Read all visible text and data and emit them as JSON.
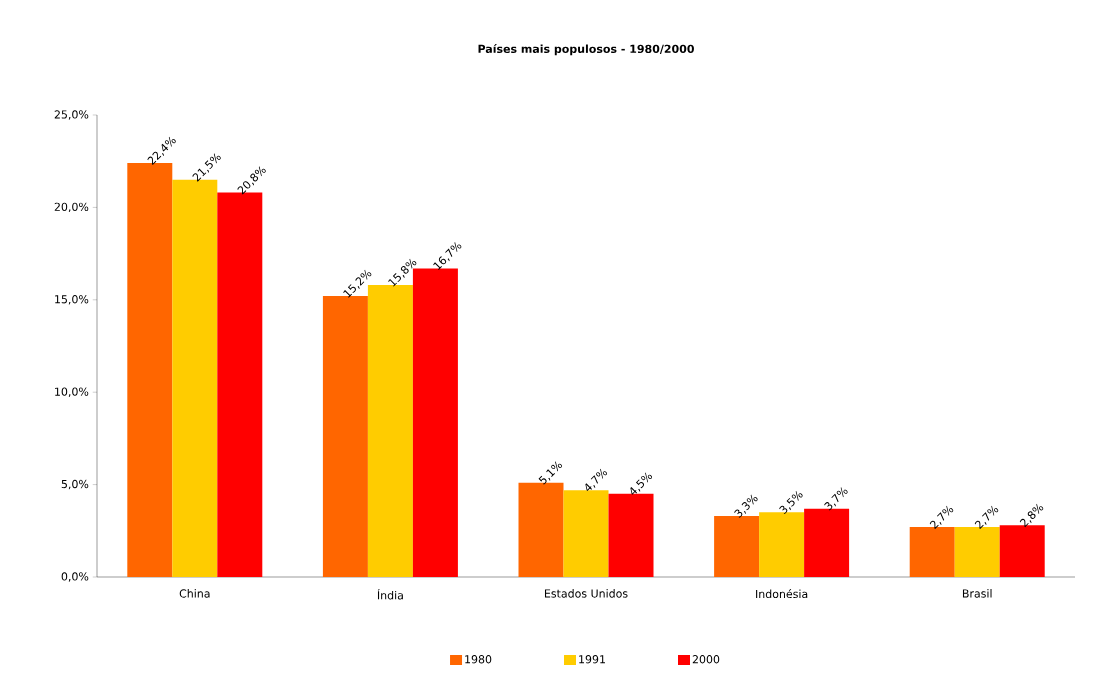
{
  "chart_data": {
    "type": "bar",
    "title": "Países mais populosos - 1980/2000",
    "categories": [
      "China",
      "Índia",
      "Estados Unidos",
      "Indonésia",
      "Brasil"
    ],
    "series": [
      {
        "name": "1980",
        "color": "#ff6600",
        "values": [
          22.4,
          15.2,
          5.1,
          3.3,
          2.7
        ],
        "value_labels": [
          "22,4%",
          "15,2%",
          "5,1%",
          "3,3%",
          "2,7%"
        ]
      },
      {
        "name": "1991",
        "color": "#ffcc00",
        "values": [
          21.5,
          15.8,
          4.7,
          3.5,
          2.7
        ],
        "value_labels": [
          "21,5%",
          "15,8%",
          "4,7%",
          "3,5%",
          "2,7%"
        ]
      },
      {
        "name": "2000",
        "color": "#ff0000",
        "values": [
          20.8,
          16.7,
          4.5,
          3.7,
          2.8
        ],
        "value_labels": [
          "20,8%",
          "16,7%",
          "4,5%",
          "3,7%",
          "2,8%"
        ]
      }
    ],
    "ylim": [
      0,
      25
    ],
    "yticks": [
      {
        "value": 0,
        "label": "0,0%"
      },
      {
        "value": 5,
        "label": "5,0%"
      },
      {
        "value": 10,
        "label": "10,0%"
      },
      {
        "value": 15,
        "label": "15,0%"
      },
      {
        "value": 20,
        "label": "20,0%"
      },
      {
        "value": 25,
        "label": "25,0%"
      }
    ],
    "grid": false,
    "legend": "bottom"
  }
}
